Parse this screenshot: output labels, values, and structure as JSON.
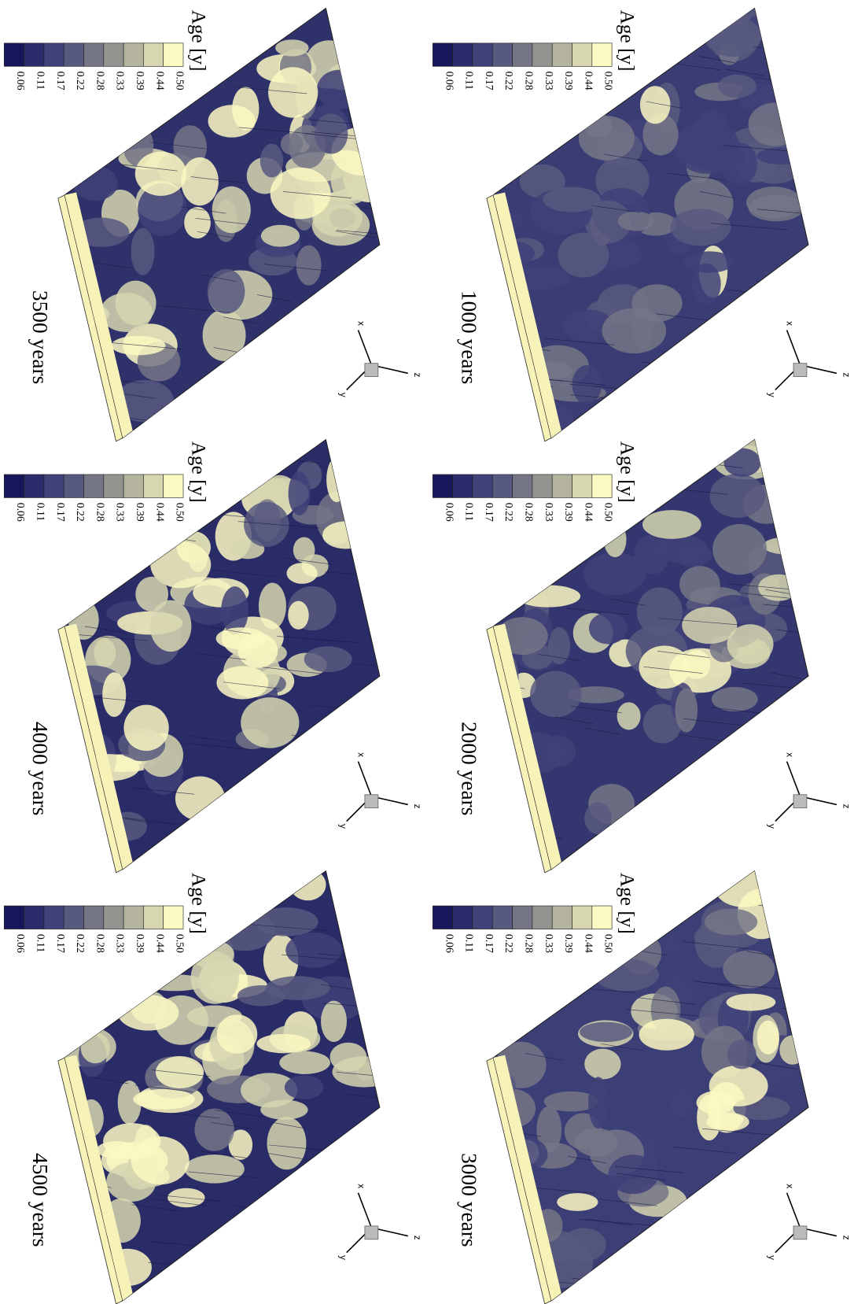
{
  "panels": [
    {
      "label": "1000 years",
      "legend_title": "Age [y]",
      "legend_ticks": [
        "0.06",
        "0.11",
        "0.17",
        "0.22",
        "0.28",
        "0.33",
        "0.39",
        "0.44",
        "0.50"
      ],
      "axes": {
        "x": "x",
        "y": "y",
        "z": "z"
      }
    },
    {
      "label": "2000 years",
      "legend_title": "Age [y]",
      "legend_ticks": [
        "0.06",
        "0.11",
        "0.17",
        "0.22",
        "0.28",
        "0.33",
        "0.39",
        "0.44",
        "0.50"
      ],
      "axes": {
        "x": "x",
        "y": "y",
        "z": "z"
      }
    },
    {
      "label": "3000 years",
      "legend_title": "Age [y]",
      "legend_ticks": [
        "0.06",
        "0.11",
        "0.17",
        "0.22",
        "0.28",
        "0.33",
        "0.39",
        "0.44",
        "0.50"
      ],
      "axes": {
        "x": "x",
        "y": "y",
        "z": "z"
      }
    },
    {
      "label": "3500 years",
      "legend_title": "Age [y]",
      "legend_ticks": [
        "0.06",
        "0.11",
        "0.17",
        "0.22",
        "0.28",
        "0.33",
        "0.39",
        "0.44",
        "0.50"
      ],
      "axes": {
        "x": "x",
        "y": "y",
        "z": "z"
      }
    },
    {
      "label": "4000 years",
      "legend_title": "Age [y]",
      "legend_ticks": [
        "0.06",
        "0.11",
        "0.17",
        "0.22",
        "0.28",
        "0.33",
        "0.39",
        "0.44",
        "0.50"
      ],
      "axes": {
        "x": "x",
        "y": "y",
        "z": "z"
      }
    },
    {
      "label": "4500 years",
      "legend_title": "Age [y]",
      "legend_ticks": [
        "0.06",
        "0.11",
        "0.17",
        "0.22",
        "0.28",
        "0.33",
        "0.39",
        "0.44",
        "0.50"
      ],
      "axes": {
        "x": "x",
        "y": "y",
        "z": "z"
      }
    }
  ]
}
